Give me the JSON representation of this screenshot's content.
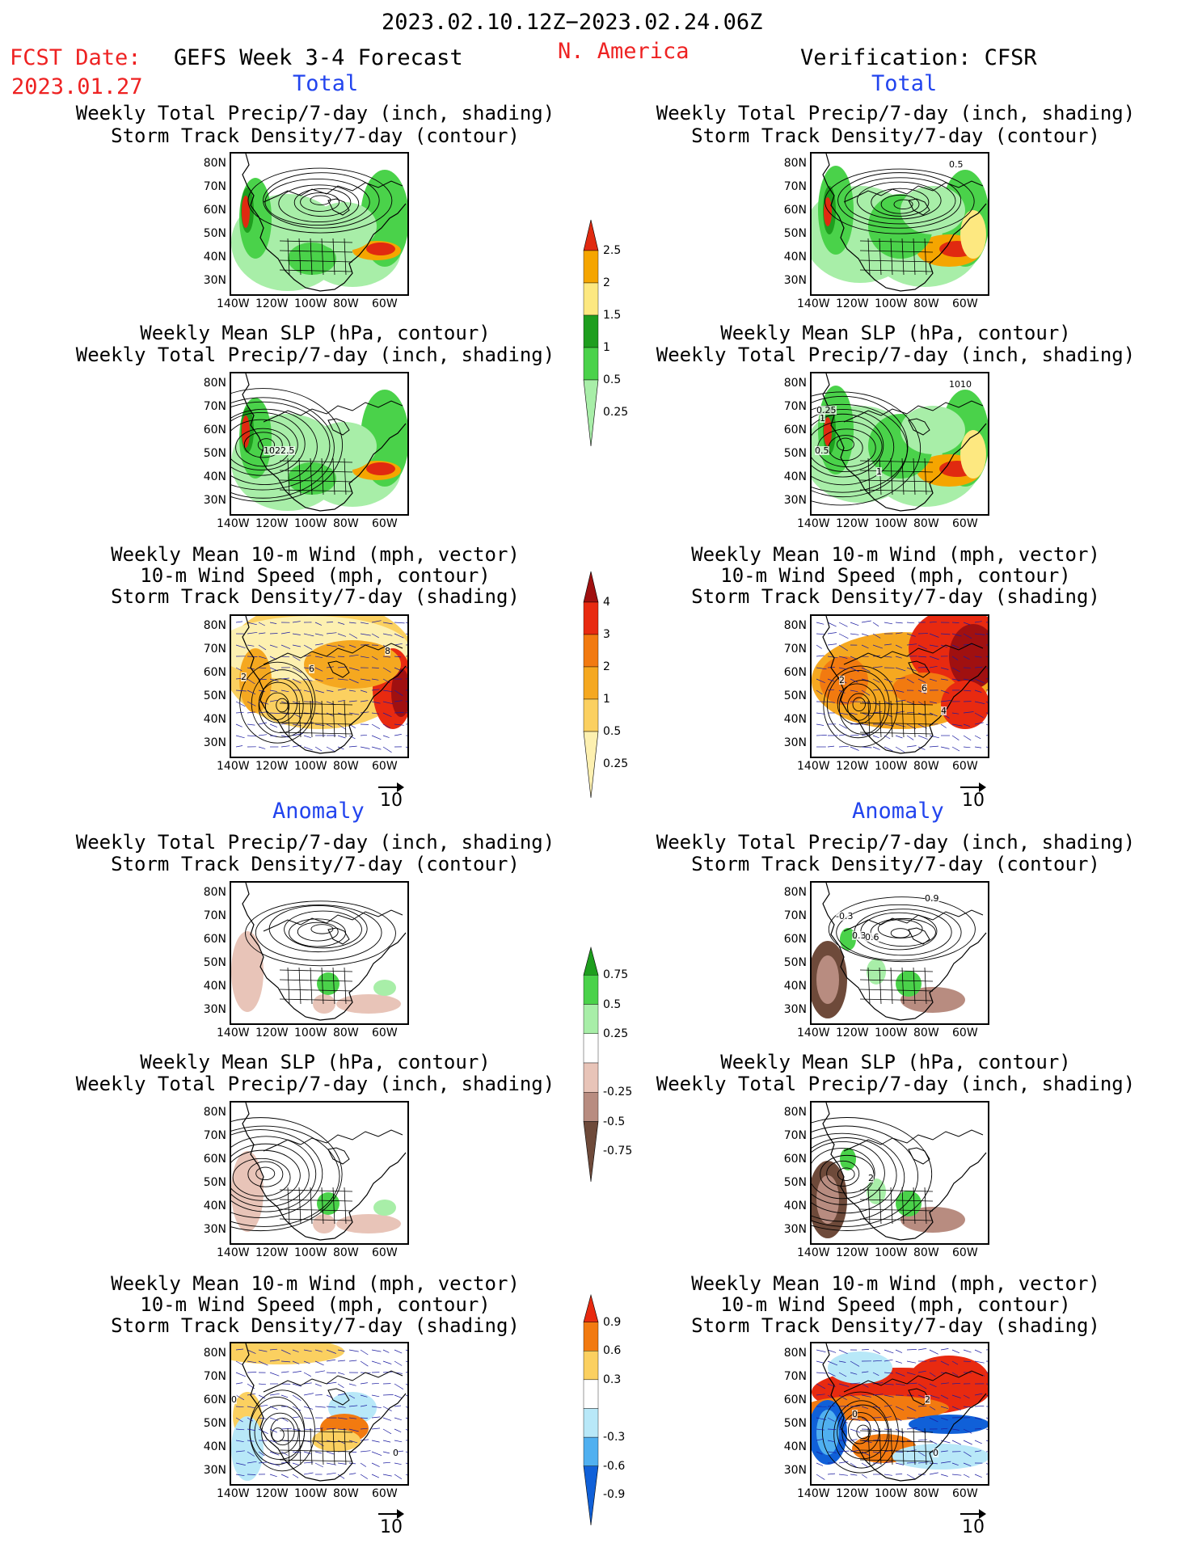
{
  "header": {
    "period": "2023.02.10.12Z−2023.02.24.06Z",
    "fcst_label": "FCST Date:",
    "fcst_date": "2023.01.27",
    "forecast_title": "GEFS Week 3-4 Forecast",
    "region": "N. America",
    "verification": "Verification: CFSR",
    "total_left": "Total",
    "total_right": "Total",
    "anomaly_left": "Anomaly",
    "anomaly_right": "Anomaly"
  },
  "titles": {
    "precip_storm": [
      "Weekly Total Precip/7-day (inch, shading)",
      "Storm Track Density/7-day (contour)"
    ],
    "slp_precip": [
      "Weekly Mean SLP (hPa, contour)",
      "Weekly Total Precip/7-day (inch, shading)"
    ],
    "wind_storm": [
      "Weekly Mean 10-m Wind (mph, vector)",
      "10-m Wind Speed (mph, contour)",
      "Storm Track Density/7-day (shading)"
    ]
  },
  "axes": {
    "lat_ticks": [
      "80N",
      "70N",
      "60N",
      "50N",
      "40N",
      "30N"
    ],
    "lon_ticks": [
      "140W",
      "120W",
      "100W",
      "80W",
      "60W"
    ]
  },
  "vector_ref": "10",
  "map_labels": {
    "p1r_a": "0.5",
    "p2r_a": "0.25",
    "p2r_b": "1",
    "p2r_c": "0.5",
    "p2r_d": "1",
    "p3l_a": "1022.5",
    "p4r_a": "1010",
    "p5l_a": "2",
    "p5l_b": "6",
    "p5l_c": "8",
    "p6r_a": "2",
    "p6r_b": "6",
    "p6r_c": "4",
    "p8r_a": "0.9",
    "p8r_b": "-0.3",
    "p8r_c": "0.3",
    "p8r_d": "0.6",
    "p10r_a": "2",
    "p11l_a": "0",
    "p11l_b": "0",
    "p12r_a": "0",
    "p12r_b": "2",
    "p12r_c": "0"
  },
  "colorbars": {
    "precip_total": {
      "labels": [
        "2.5",
        "2",
        "1.5",
        "1",
        "0.5",
        "0.25"
      ],
      "colors": [
        "#e02a10",
        "#f5a500",
        "#fde880",
        "#1e9e1e",
        "#4ad24a",
        "#a8eea8"
      ]
    },
    "storm_total": {
      "labels": [
        "4",
        "3",
        "2",
        "1",
        "0.5",
        "0.25"
      ],
      "colors": [
        "#a01010",
        "#e82a10",
        "#f27a10",
        "#f5a820",
        "#fbd060",
        "#fdf0b0"
      ]
    },
    "precip_anom": {
      "labels": [
        "0.75",
        "0.5",
        "0.25",
        "-0.25",
        "-0.5",
        "-0.75"
      ],
      "colors": [
        "#1e9e1e",
        "#4ad24a",
        "#a8eea8",
        "#ffffff",
        "#e8c4b8",
        "#b88c80",
        "#6e4a3a"
      ]
    },
    "storm_anom": {
      "labels": [
        "0.9",
        "0.6",
        "0.3",
        "-0.3",
        "-0.6",
        "-0.9"
      ],
      "colors": [
        "#e82a10",
        "#f27a10",
        "#fbd060",
        "#ffffff",
        "#b8e8f8",
        "#50b0f0",
        "#1060d8"
      ]
    }
  }
}
